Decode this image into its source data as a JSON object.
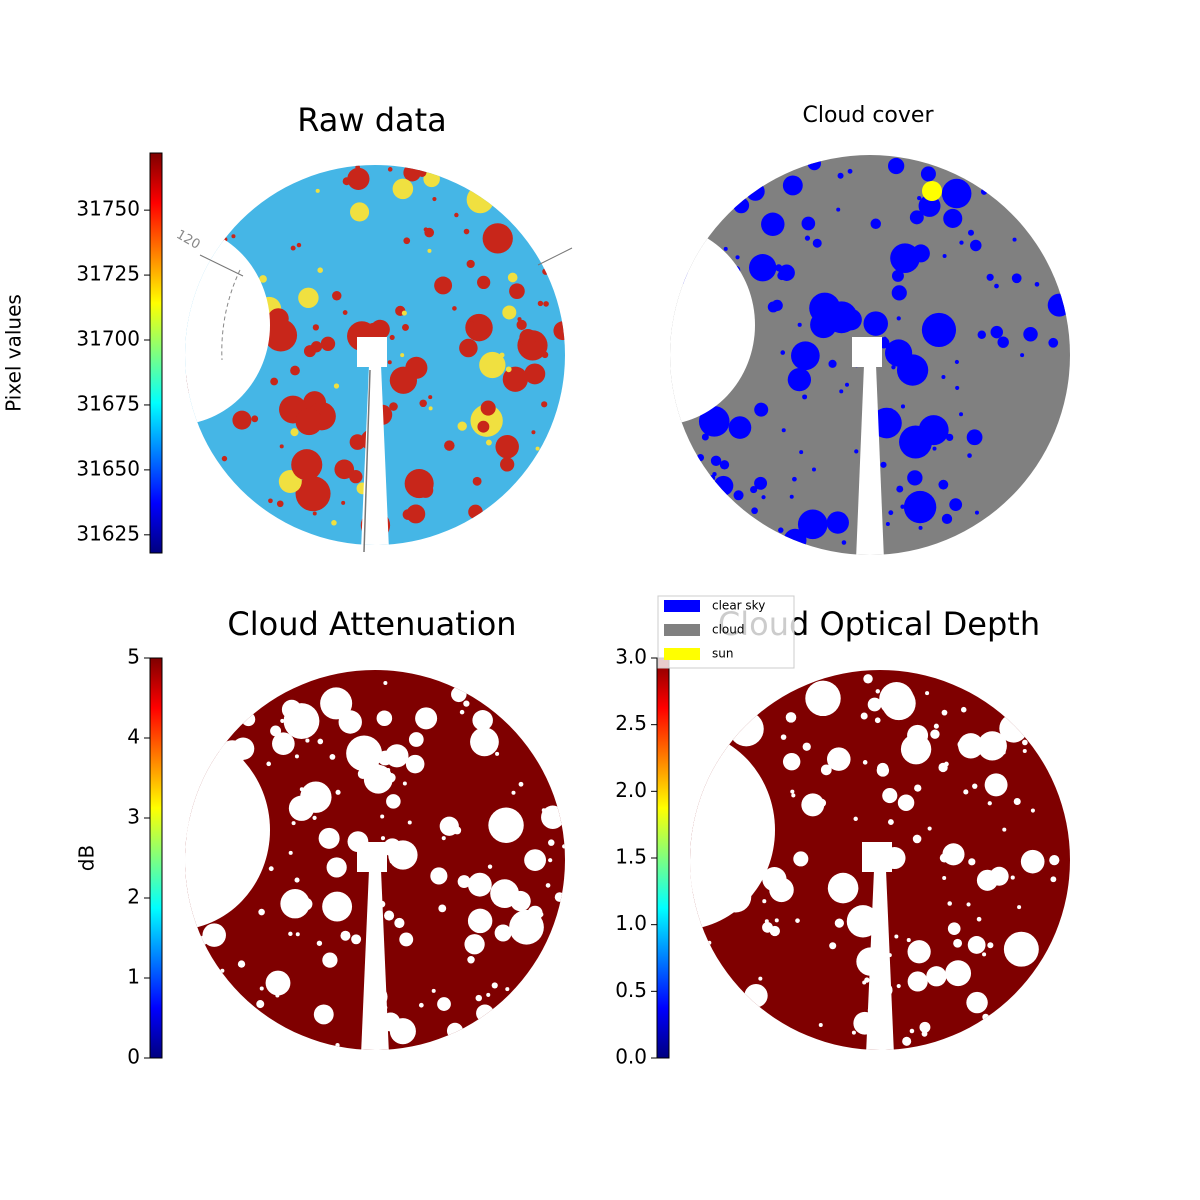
{
  "chart_data": [
    {
      "type": "image",
      "title": "Raw data",
      "ylabel": "Pixel values",
      "colormap": "jet",
      "ylim": [
        31618,
        31772
      ],
      "yticks": [
        31625,
        31650,
        31675,
        31700,
        31725,
        31750
      ],
      "annotations": [
        "120"
      ]
    },
    {
      "type": "image",
      "title": "Cloud cover",
      "series": [
        {
          "name": "clear sky",
          "color": "#0000ff"
        },
        {
          "name": "cloud",
          "color": "#808080"
        },
        {
          "name": "sun",
          "color": "#ffff00"
        }
      ]
    },
    {
      "type": "image",
      "title": "Cloud Attenuation",
      "ylabel": "dB",
      "colormap": "jet",
      "ylim": [
        0,
        5
      ],
      "yticks": [
        0,
        1,
        2,
        3,
        4,
        5
      ]
    },
    {
      "type": "image",
      "title": "Cloud Optical Depth",
      "colormap": "jet",
      "ylim": [
        0,
        3
      ],
      "yticks": [
        {
          "value": 0,
          "label": "0.0"
        },
        0.5,
        {
          "value": 1,
          "label": "1.0"
        },
        1.5,
        {
          "value": 2,
          "label": "2.0"
        },
        2.5,
        {
          "value": 3,
          "label": "3.0"
        }
      ]
    }
  ]
}
